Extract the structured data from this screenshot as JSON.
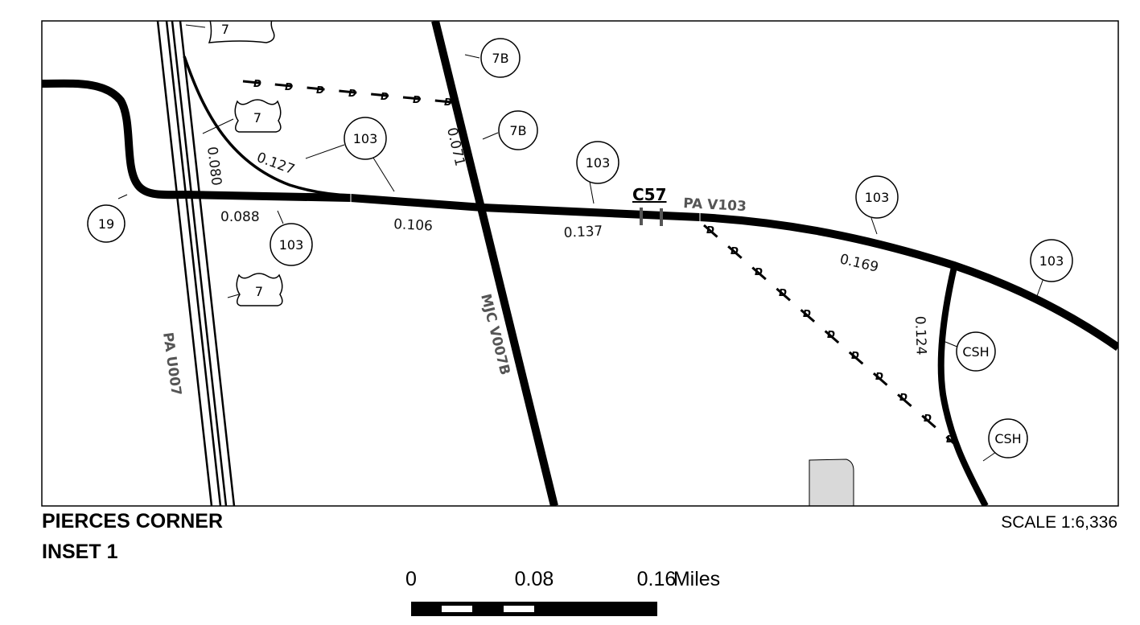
{
  "map": {
    "title_line1": "PIERCES CORNER",
    "title_line2": "INSET 1",
    "scale_text": "SCALE 1:6,336",
    "control_point": "C57",
    "road_labels": {
      "pa_v103": "PA V103",
      "mjc_v007b": "MJC V007B",
      "pa_u007": "PA U007"
    },
    "segment_labels": {
      "s_0127": "0.127",
      "s_0080": "0.080",
      "s_0071": "0.071",
      "s_0088": "0.088",
      "s_0106": "0.106",
      "s_0137": "0.137",
      "s_0169": "0.169",
      "s_0124": "0.124"
    },
    "shields": {
      "us7_top": "7",
      "us7_mid": "7",
      "us7_low": "7",
      "r7b_top": "7B",
      "r7b_mid": "7B",
      "r19": "19",
      "r103_a": "103",
      "r103_b": "103",
      "r103_c": "103",
      "r103_d": "103",
      "r103_e": "103",
      "csh_a": "CSH",
      "csh_b": "CSH"
    },
    "dash_letter": "D",
    "scalebar": {
      "tick0": "0",
      "tick1": "0.08",
      "tick2": "0.16",
      "units": "Miles"
    },
    "colors": {
      "road": "#000000",
      "label_gray": "#555555",
      "building": "#d9d9d9"
    }
  }
}
